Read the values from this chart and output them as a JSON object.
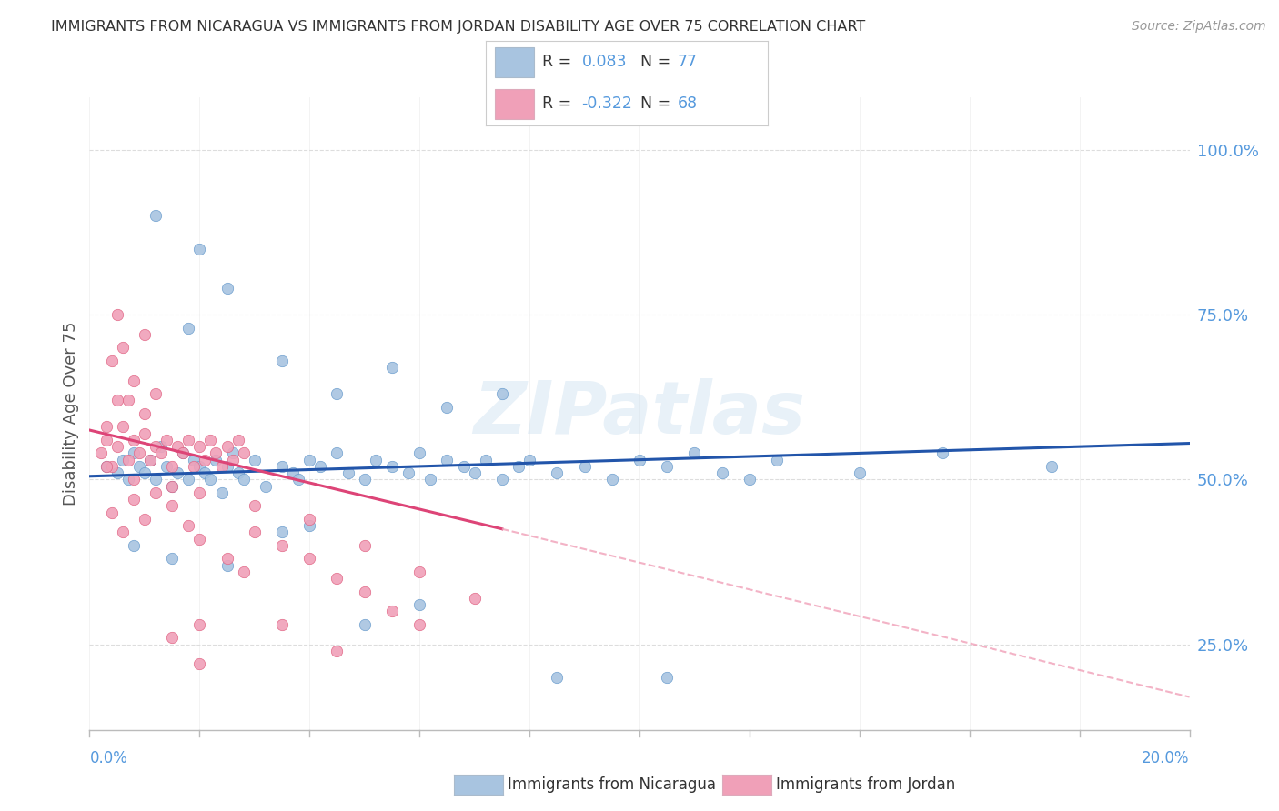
{
  "title": "IMMIGRANTS FROM NICARAGUA VS IMMIGRANTS FROM JORDAN DISABILITY AGE OVER 75 CORRELATION CHART",
  "source": "Source: ZipAtlas.com",
  "ylabel": "Disability Age Over 75",
  "xlim": [
    0.0,
    20.0
  ],
  "ylim": [
    12.0,
    108.0
  ],
  "yticks": [
    25.0,
    50.0,
    75.0,
    100.0
  ],
  "ytick_labels": [
    "25.0%",
    "50.0%",
    "75.0%",
    "100.0%"
  ],
  "nicaragua_color": "#a8c4e0",
  "jordan_color": "#f0a0b8",
  "nicaragua_edge_color": "#6699cc",
  "jordan_edge_color": "#e06080",
  "nicaragua_line_color": "#2255aa",
  "jordan_line_color": "#dd4477",
  "jordan_dash_color": "#f0a0b8",
  "watermark": "ZIPatlas",
  "tick_color": "#5599dd",
  "grid_color": "#dddddd",
  "bg_color": "#ffffff",
  "title_color": "#333333",
  "ylabel_color": "#555555",
  "source_color": "#999999",
  "nicaragua_points": [
    [
      0.3,
      52
    ],
    [
      0.5,
      51
    ],
    [
      0.6,
      53
    ],
    [
      0.7,
      50
    ],
    [
      0.8,
      54
    ],
    [
      0.9,
      52
    ],
    [
      1.0,
      51
    ],
    [
      1.1,
      53
    ],
    [
      1.2,
      50
    ],
    [
      1.3,
      55
    ],
    [
      1.4,
      52
    ],
    [
      1.5,
      49
    ],
    [
      1.6,
      51
    ],
    [
      1.7,
      54
    ],
    [
      1.8,
      50
    ],
    [
      1.9,
      53
    ],
    [
      2.0,
      52
    ],
    [
      2.1,
      51
    ],
    [
      2.2,
      50
    ],
    [
      2.3,
      53
    ],
    [
      2.4,
      48
    ],
    [
      2.5,
      52
    ],
    [
      2.6,
      54
    ],
    [
      2.7,
      51
    ],
    [
      2.8,
      50
    ],
    [
      3.0,
      53
    ],
    [
      3.2,
      49
    ],
    [
      3.5,
      52
    ],
    [
      3.7,
      51
    ],
    [
      3.8,
      50
    ],
    [
      4.0,
      53
    ],
    [
      4.2,
      52
    ],
    [
      4.5,
      54
    ],
    [
      4.7,
      51
    ],
    [
      5.0,
      50
    ],
    [
      5.2,
      53
    ],
    [
      5.5,
      52
    ],
    [
      5.8,
      51
    ],
    [
      6.0,
      54
    ],
    [
      6.2,
      50
    ],
    [
      6.5,
      53
    ],
    [
      6.8,
      52
    ],
    [
      7.0,
      51
    ],
    [
      7.2,
      53
    ],
    [
      7.5,
      50
    ],
    [
      7.8,
      52
    ],
    [
      8.0,
      53
    ],
    [
      8.5,
      51
    ],
    [
      9.0,
      52
    ],
    [
      9.5,
      50
    ],
    [
      10.0,
      53
    ],
    [
      10.5,
      52
    ],
    [
      11.0,
      54
    ],
    [
      11.5,
      51
    ],
    [
      12.0,
      50
    ],
    [
      12.5,
      53
    ],
    [
      1.8,
      73
    ],
    [
      2.5,
      79
    ],
    [
      3.5,
      68
    ],
    [
      4.5,
      63
    ],
    [
      5.5,
      67
    ],
    [
      6.5,
      61
    ],
    [
      7.5,
      63
    ],
    [
      1.2,
      90
    ],
    [
      2.0,
      85
    ],
    [
      0.8,
      40
    ],
    [
      1.5,
      38
    ],
    [
      2.5,
      37
    ],
    [
      3.5,
      42
    ],
    [
      4.0,
      43
    ],
    [
      5.0,
      28
    ],
    [
      6.0,
      31
    ],
    [
      8.5,
      20
    ],
    [
      10.5,
      20
    ],
    [
      14.0,
      51
    ],
    [
      15.5,
      54
    ],
    [
      17.5,
      52
    ]
  ],
  "jordan_points": [
    [
      0.2,
      54
    ],
    [
      0.3,
      56
    ],
    [
      0.4,
      52
    ],
    [
      0.5,
      55
    ],
    [
      0.6,
      58
    ],
    [
      0.7,
      53
    ],
    [
      0.8,
      56
    ],
    [
      0.9,
      54
    ],
    [
      1.0,
      57
    ],
    [
      1.1,
      53
    ],
    [
      1.2,
      55
    ],
    [
      1.3,
      54
    ],
    [
      1.4,
      56
    ],
    [
      1.5,
      52
    ],
    [
      1.6,
      55
    ],
    [
      1.7,
      54
    ],
    [
      1.8,
      56
    ],
    [
      1.9,
      52
    ],
    [
      2.0,
      55
    ],
    [
      2.1,
      53
    ],
    [
      2.2,
      56
    ],
    [
      2.3,
      54
    ],
    [
      2.4,
      52
    ],
    [
      2.5,
      55
    ],
    [
      2.6,
      53
    ],
    [
      2.7,
      56
    ],
    [
      2.8,
      54
    ],
    [
      0.5,
      62
    ],
    [
      0.8,
      65
    ],
    [
      1.0,
      60
    ],
    [
      1.2,
      63
    ],
    [
      0.4,
      68
    ],
    [
      0.6,
      70
    ],
    [
      0.3,
      58
    ],
    [
      0.7,
      62
    ],
    [
      0.4,
      45
    ],
    [
      0.6,
      42
    ],
    [
      0.8,
      47
    ],
    [
      1.0,
      44
    ],
    [
      1.2,
      48
    ],
    [
      1.5,
      46
    ],
    [
      1.8,
      43
    ],
    [
      2.0,
      41
    ],
    [
      2.5,
      38
    ],
    [
      2.8,
      36
    ],
    [
      3.0,
      42
    ],
    [
      3.5,
      40
    ],
    [
      4.0,
      38
    ],
    [
      4.5,
      35
    ],
    [
      5.0,
      33
    ],
    [
      5.5,
      30
    ],
    [
      6.0,
      28
    ],
    [
      1.5,
      26
    ],
    [
      2.0,
      22
    ],
    [
      0.3,
      52
    ],
    [
      0.8,
      50
    ],
    [
      1.5,
      49
    ],
    [
      2.0,
      48
    ],
    [
      3.0,
      46
    ],
    [
      4.0,
      44
    ],
    [
      5.0,
      40
    ],
    [
      6.0,
      36
    ],
    [
      7.0,
      32
    ],
    [
      3.5,
      28
    ],
    [
      4.5,
      24
    ],
    [
      0.5,
      75
    ],
    [
      1.0,
      72
    ],
    [
      2.0,
      28
    ]
  ],
  "nic_line_x0": 0.0,
  "nic_line_y0": 50.5,
  "nic_line_x1": 20.0,
  "nic_line_y1": 55.5,
  "jor_line_x0": 0.0,
  "jor_line_y0": 57.5,
  "jor_solid_x1": 7.5,
  "jor_solid_y1": 42.5,
  "jor_dash_x1": 20.0,
  "jor_dash_y1": 17.0
}
